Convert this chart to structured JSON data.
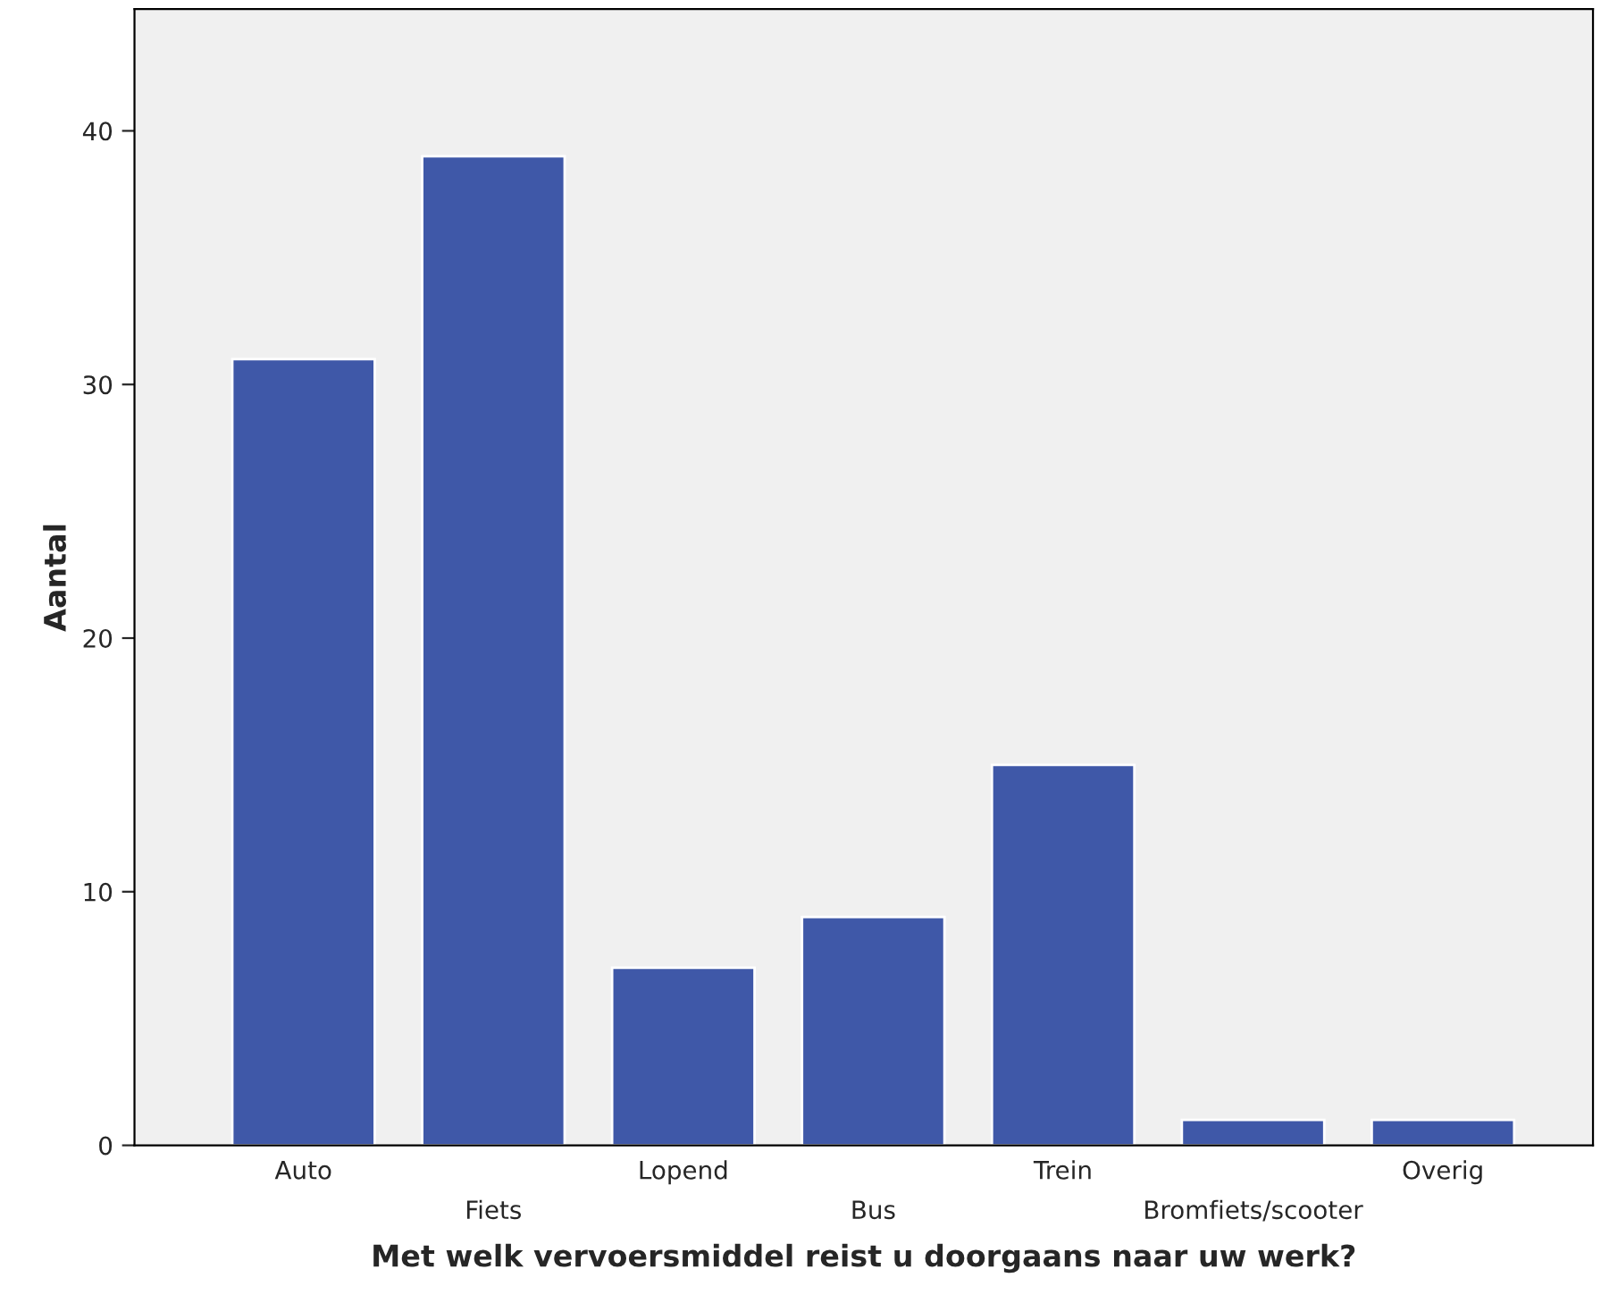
{
  "chart_data": {
    "type": "bar",
    "xlabel": "Met welk vervoersmiddel reist u doorgaans naar uw werk?",
    "ylabel": "Aantal",
    "categories": [
      "Auto",
      "Fiets",
      "Lopend",
      "Bus",
      "Trein",
      "Bromfiets/scooter",
      "Overig"
    ],
    "values": [
      31,
      39,
      7,
      9,
      15,
      1,
      1
    ],
    "color": "#3f58a8",
    "ylim": [
      0,
      44.8
    ],
    "yticks": [
      0,
      10,
      20,
      30,
      40
    ],
    "grid": false
  }
}
